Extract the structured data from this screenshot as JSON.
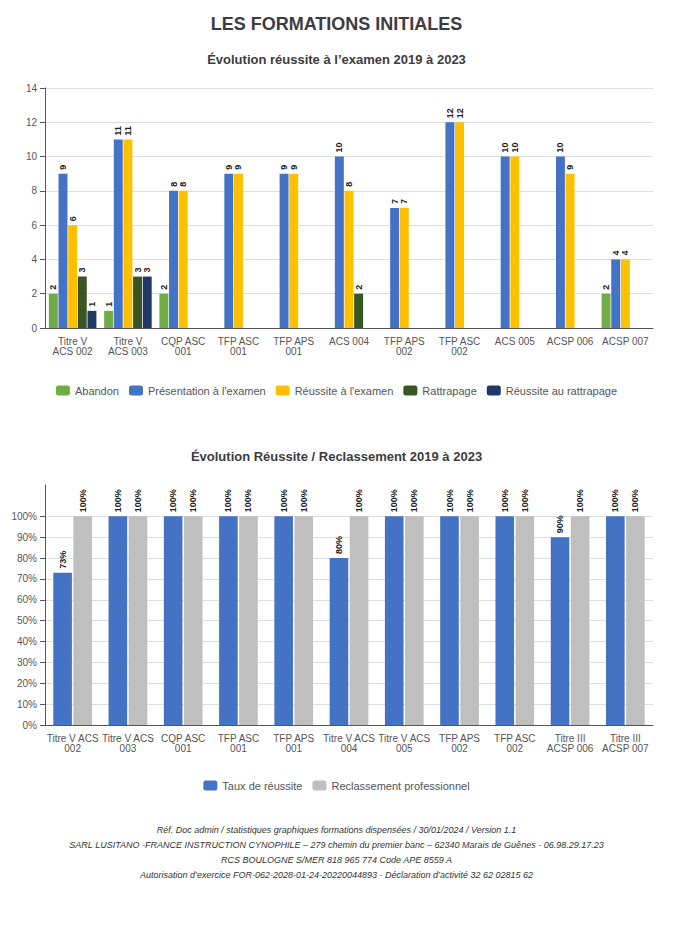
{
  "title": "LES FORMATIONS INITIALES",
  "annotations": [
    "Réf. Doc admin / statistiques graphiques formations dispensées / 30/01/2024 / Version 1.1",
    "SARL LUSITANO -FRANCE INSTRUCTION CYNOPHILE – 279 chemin du premier banc – 62340 Marais de Guênes - 06.98.29.17.23",
    "RCS BOULOGNE S/MER 818 965 774 Code APE 8559 A",
    "Autorisation d’exercice FOR-062-2028-01-24-20220044893 - Déclaration d’activité 32 62 02815 62"
  ],
  "chart_data": [
    {
      "type": "bar",
      "title": "Évolution réussite à l’examen 2019 à 2023",
      "categories": [
        "Titre V\nACS 002",
        "Titre V\nACS 003",
        "CQP ASC\n001",
        "TFP ASC\n001",
        "TFP APS\n001",
        "ACS 004",
        "TFP APS\n002",
        "TFP ASC\n002",
        "ACS 005",
        "ACSP 006",
        "ACSP 007"
      ],
      "series": [
        {
          "name": "Abandon",
          "color": "#70AD47",
          "values": [
            2,
            1,
            2,
            0,
            0,
            0,
            0,
            0,
            0,
            0,
            2
          ],
          "value_labels": [
            "2",
            "1",
            "2",
            null,
            null,
            null,
            null,
            null,
            null,
            null,
            "2"
          ]
        },
        {
          "name": "Présentation à l'examen",
          "color": "#4472C4",
          "values": [
            9,
            11,
            8,
            9,
            9,
            10,
            7,
            12,
            10,
            10,
            4
          ],
          "value_labels": [
            "9",
            "11",
            "8",
            "9",
            "9",
            "10",
            "7",
            "12",
            "10",
            "10",
            "4"
          ]
        },
        {
          "name": "Réussite à l'examen",
          "color": "#FFC000",
          "values": [
            6,
            11,
            8,
            9,
            9,
            8,
            7,
            12,
            10,
            9,
            4
          ],
          "value_labels": [
            "6",
            "11",
            "8",
            "9",
            "9",
            "8",
            "7",
            "12",
            "10",
            "9",
            "4"
          ]
        },
        {
          "name": "Rattrapage",
          "color": "#375623",
          "values": [
            3,
            3,
            0,
            0,
            0,
            2,
            0,
            0,
            0,
            0,
            0
          ],
          "value_labels": [
            "3",
            "3",
            null,
            null,
            null,
            "2",
            null,
            null,
            null,
            null,
            null
          ]
        },
        {
          "name": "Réussite au rattrapage",
          "color": "#203864",
          "values": [
            1,
            3,
            0,
            0,
            0,
            0,
            0,
            0,
            0,
            0,
            0
          ],
          "value_labels": [
            "1",
            "3",
            null,
            null,
            null,
            null,
            null,
            null,
            null,
            null,
            null
          ]
        }
      ],
      "ylim": [
        0,
        14
      ],
      "yticks": [
        0,
        2,
        4,
        6,
        8,
        10,
        12,
        14
      ],
      "grid": true,
      "legend": "bottom",
      "data_labels": true
    },
    {
      "type": "bar",
      "title": "Évolution Réussite / Reclassement 2019 à 2023",
      "categories": [
        "Titre V ACS\n002",
        "Titre V ACS\n003",
        "CQP ASC\n001",
        "TFP ASC\n001",
        "TFP APS\n001",
        "Titre V ACS\n004",
        "Titre V ACS\n005",
        "TFP APS\n002",
        "TFP ASC\n002",
        "Titre III\nACSP 006",
        "Titre III\nACSP 007"
      ],
      "series": [
        {
          "name": "Taux de réussite",
          "color": "#4472C4",
          "values": [
            73,
            100,
            100,
            100,
            100,
            80,
            100,
            100,
            100,
            90,
            100
          ],
          "value_labels": [
            "73%",
            "100%",
            "100%",
            "100%",
            "100%",
            "80%",
            "100%",
            "100%",
            "100%",
            "90%",
            "100%"
          ]
        },
        {
          "name": "Reclassement professionnel",
          "color": "#BFBFBF",
          "values": [
            100,
            100,
            100,
            100,
            100,
            100,
            100,
            100,
            100,
            100,
            100
          ],
          "value_labels": [
            "100%",
            "100%",
            "100%",
            "100%",
            "100%",
            "100%",
            "100%",
            "100%",
            "100%",
            "100%",
            "100%"
          ]
        }
      ],
      "ylim": [
        0,
        115
      ],
      "yticks": [
        {
          "value": 0,
          "label": "0%"
        },
        {
          "value": 10,
          "label": "10%"
        },
        {
          "value": 20,
          "label": "20%"
        },
        {
          "value": 30,
          "label": "30%"
        },
        {
          "value": 40,
          "label": "40%"
        },
        {
          "value": 50,
          "label": "50%"
        },
        {
          "value": 60,
          "label": "60%"
        },
        {
          "value": 70,
          "label": "70%"
        },
        {
          "value": 80,
          "label": "80%"
        },
        {
          "value": 90,
          "label": "90%"
        },
        {
          "value": 100,
          "label": "100%"
        }
      ],
      "grid": true,
      "legend": "bottom",
      "data_labels": true
    }
  ]
}
